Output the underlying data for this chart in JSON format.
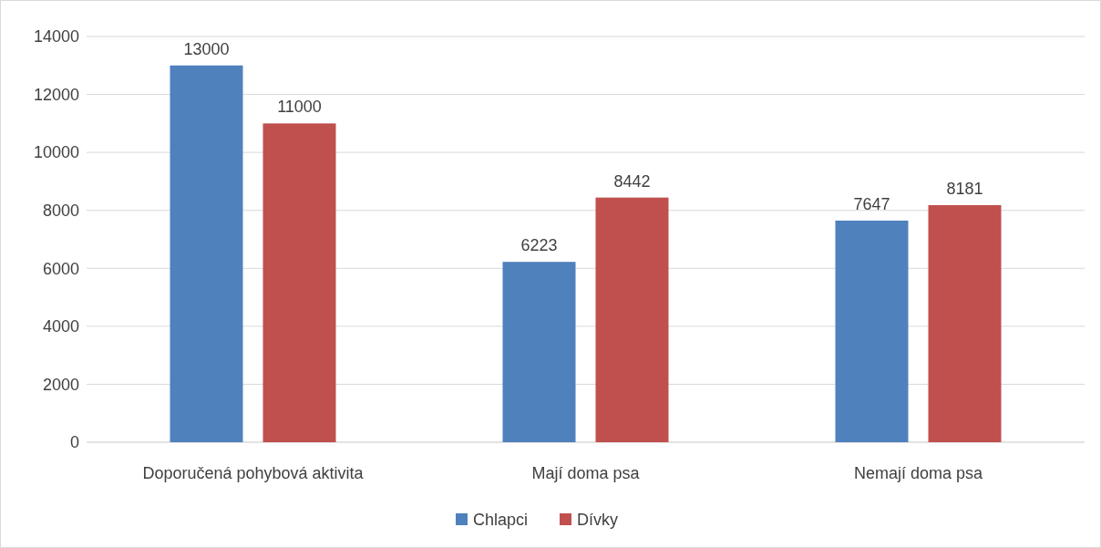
{
  "chart_data": {
    "type": "bar",
    "categories": [
      "Doporučená pohybová aktivita",
      "Mají doma psa",
      "Nemají doma psa"
    ],
    "series": [
      {
        "name": "Chlapci",
        "color": "#4f81bd",
        "values": [
          13000,
          6223,
          7647
        ]
      },
      {
        "name": "Dívky",
        "color": "#c0504d",
        "values": [
          11000,
          8442,
          8181
        ]
      }
    ],
    "ylim": [
      0,
      14000
    ],
    "yticks": [
      0,
      2000,
      4000,
      6000,
      8000,
      10000,
      12000,
      14000
    ],
    "grid": "y",
    "legend": "bottom",
    "data_labels": true
  }
}
